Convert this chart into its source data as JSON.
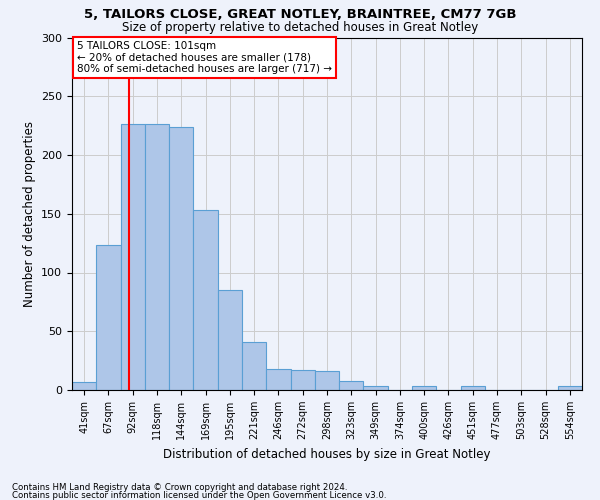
{
  "title1": "5, TAILORS CLOSE, GREAT NOTLEY, BRAINTREE, CM77 7GB",
  "title2": "Size of property relative to detached houses in Great Notley",
  "xlabel": "Distribution of detached houses by size in Great Notley",
  "ylabel": "Number of detached properties",
  "footnote1": "Contains HM Land Registry data © Crown copyright and database right 2024.",
  "footnote2": "Contains public sector information licensed under the Open Government Licence v3.0.",
  "annotation_line1": "5 TAILORS CLOSE: 101sqm",
  "annotation_line2": "← 20% of detached houses are smaller (178)",
  "annotation_line3": "80% of semi-detached houses are larger (717) →",
  "bar_color": "#aec6e8",
  "bar_edge_color": "#5a9fd4",
  "red_line_x": 101,
  "categories": [
    "41sqm",
    "67sqm",
    "92sqm",
    "118sqm",
    "144sqm",
    "169sqm",
    "195sqm",
    "221sqm",
    "246sqm",
    "272sqm",
    "298sqm",
    "323sqm",
    "349sqm",
    "374sqm",
    "400sqm",
    "426sqm",
    "451sqm",
    "477sqm",
    "503sqm",
    "528sqm",
    "554sqm"
  ],
  "bin_edges": [
    41,
    67,
    92,
    118,
    144,
    169,
    195,
    221,
    246,
    272,
    298,
    323,
    349,
    374,
    400,
    426,
    451,
    477,
    503,
    528,
    554,
    580
  ],
  "values": [
    7,
    123,
    226,
    226,
    224,
    153,
    85,
    41,
    18,
    17,
    16,
    8,
    3,
    0,
    3,
    0,
    3,
    0,
    0,
    0,
    3
  ],
  "ylim": [
    0,
    300
  ],
  "yticks": [
    0,
    50,
    100,
    150,
    200,
    250,
    300
  ],
  "background_color": "#eef2fb",
  "grid_color": "#cccccc"
}
